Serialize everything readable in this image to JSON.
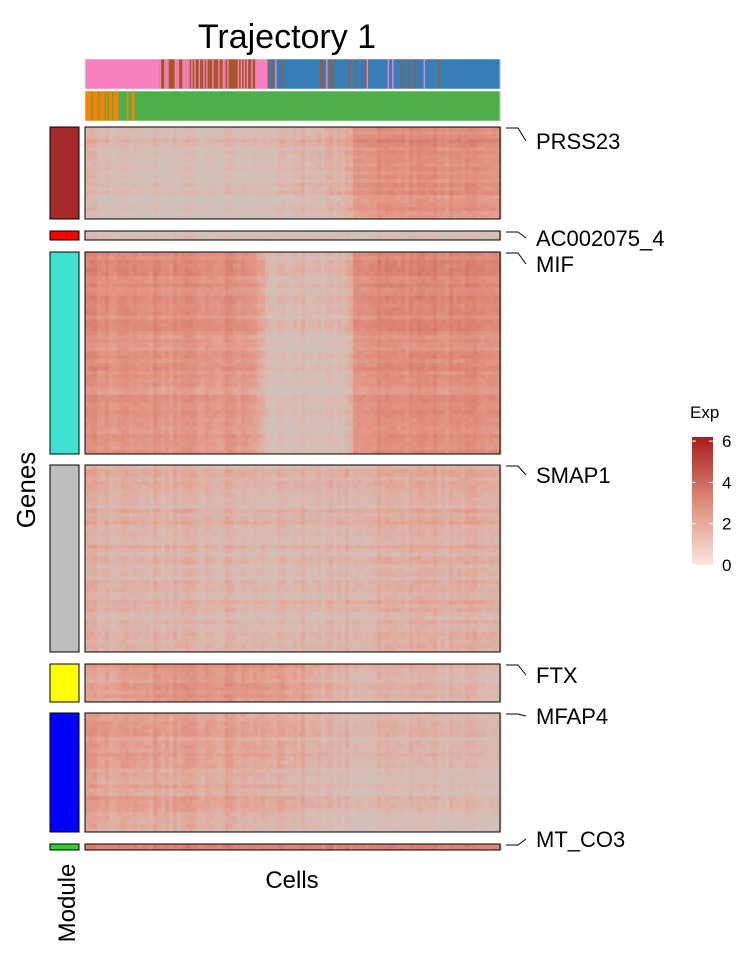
{
  "chart_data": {
    "type": "heatmap",
    "title": "Trajectory 1",
    "xlabel": "Cells",
    "ylabel": "Genes",
    "module_label": "Module",
    "legend": {
      "title": "Exp",
      "ticks": [
        0,
        2,
        4,
        6
      ],
      "range": [
        0,
        6.2
      ],
      "colors": [
        "#f8e6dd",
        "#de8a78",
        "#a91c1c"
      ],
      "placement": "right"
    },
    "annotation_bars": [
      {
        "segments": [
          {
            "start": 0.0,
            "end": 0.18,
            "color": "#f781bf"
          },
          {
            "start": 0.18,
            "end": 0.41,
            "color": "#a65628"
          },
          {
            "start": 0.41,
            "end": 0.44,
            "color": "#f781bf"
          },
          {
            "start": 0.44,
            "end": 0.88,
            "color": "#377eb8"
          },
          {
            "start": 0.88,
            "end": 1.0,
            "color": "#377eb8"
          }
        ],
        "interleaved": [
          {
            "start": 0.18,
            "end": 0.41,
            "color": "#f781bf",
            "freq": 0.35
          },
          {
            "start": 0.44,
            "end": 0.88,
            "color": "#a65628",
            "freq": 0.1
          },
          {
            "start": 0.44,
            "end": 0.88,
            "color": "#f781bf",
            "freq": 0.04
          }
        ]
      },
      {
        "segments": [
          {
            "start": 0.0,
            "end": 0.08,
            "color": "#ff7f00"
          },
          {
            "start": 0.08,
            "end": 1.0,
            "color": "#4daf4a"
          }
        ],
        "interleaved": [
          {
            "start": 0.0,
            "end": 0.08,
            "color": "#4daf4a",
            "freq": 0.25
          },
          {
            "start": 0.08,
            "end": 0.12,
            "color": "#ff7f00",
            "freq": 0.3
          }
        ]
      }
    ],
    "modules": [
      {
        "color": "#a52a2a",
        "label": "PRSS23",
        "rows": 30,
        "profile": [
          [
            0,
            1.9
          ],
          [
            0.18,
            1.6
          ],
          [
            0.4,
            1.7
          ],
          [
            0.63,
            2.2
          ],
          [
            0.65,
            3.0
          ],
          [
            1.0,
            3.1
          ]
        ]
      },
      {
        "color": "#ff0000",
        "label": "AC002075_4",
        "rows": 2,
        "profile": [
          [
            0,
            1.5
          ],
          [
            1.0,
            1.4
          ]
        ]
      },
      {
        "color": "#40e0d0",
        "label": "MIF",
        "rows": 60,
        "profile": [
          [
            0,
            3.0
          ],
          [
            0.4,
            2.8
          ],
          [
            0.45,
            1.6
          ],
          [
            0.63,
            1.7
          ],
          [
            0.65,
            3.0
          ],
          [
            1.0,
            3.1
          ]
        ]
      },
      {
        "color": "#bebebe",
        "label": "SMAP1",
        "rows": 60,
        "profile": [
          [
            0,
            2.1
          ],
          [
            0.5,
            1.9
          ],
          [
            1.0,
            2.2
          ]
        ]
      },
      {
        "color": "#ffff00",
        "label": "FTX",
        "rows": 12,
        "profile": [
          [
            0,
            2.3
          ],
          [
            0.18,
            2.9
          ],
          [
            0.45,
            2.8
          ],
          [
            0.63,
            2.0
          ],
          [
            1.0,
            1.9
          ]
        ]
      },
      {
        "color": "#0000ff",
        "label": "MFAP4",
        "rows": 40,
        "profile": [
          [
            0,
            2.6
          ],
          [
            0.45,
            2.3
          ],
          [
            0.63,
            1.8
          ],
          [
            1.0,
            1.8
          ]
        ]
      },
      {
        "color": "#32cd32",
        "label": "MT_CO3",
        "rows": 2,
        "profile": [
          [
            0,
            3.2
          ],
          [
            1.0,
            3.2
          ]
        ]
      }
    ]
  }
}
